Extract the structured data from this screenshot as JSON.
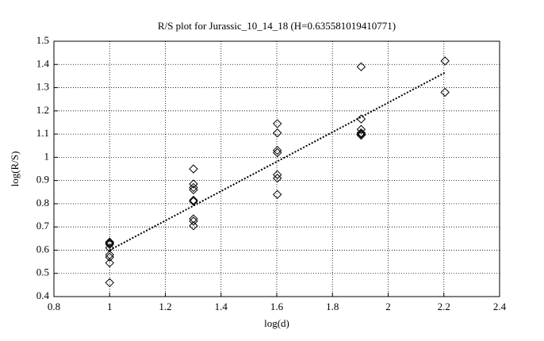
{
  "chart_data": {
    "type": "scatter",
    "title": "R/S plot for Jurassic_10_14_18 (H=0.635581019410771)",
    "x_label": "log(d)",
    "y_label": "log(R/S)",
    "xlim": [
      0.8,
      2.4
    ],
    "ylim": [
      0.4,
      1.5
    ],
    "xticks": [
      0.8,
      1,
      1.2,
      1.4,
      1.6,
      1.8,
      2,
      2.2,
      2.4
    ],
    "yticks": [
      0.4,
      0.5,
      0.6,
      0.7,
      0.8,
      0.9,
      1,
      1.1,
      1.2,
      1.3,
      1.4,
      1.5
    ],
    "grid": true,
    "series": [
      {
        "style": "markers",
        "color": "#000000",
        "x": [
          1,
          1,
          1,
          1,
          1,
          1,
          1,
          1,
          1.301,
          1.301,
          1.301,
          1.301,
          1.301,
          1.301,
          1.301,
          1.301,
          1.301,
          1.602,
          1.602,
          1.602,
          1.602,
          1.602,
          1.602,
          1.602,
          1.903,
          1.903,
          1.903,
          1.903,
          1.903,
          1.903,
          2.204,
          2.204
        ],
        "values": [
          0.46,
          0.545,
          0.57,
          0.58,
          0.61,
          0.625,
          0.635,
          0.63,
          0.95,
          0.885,
          0.87,
          0.86,
          0.815,
          0.81,
          0.735,
          0.725,
          0.705,
          1.145,
          1.105,
          1.03,
          1.02,
          0.925,
          0.91,
          0.84,
          1.39,
          1.165,
          1.12,
          1.105,
          1.1,
          1.095,
          1.415,
          1.28
        ]
      },
      {
        "style": "dotted-line",
        "color": "#000000",
        "x": [
          1,
          2.204
        ],
        "values": [
          0.6,
          1.365
        ]
      }
    ]
  }
}
